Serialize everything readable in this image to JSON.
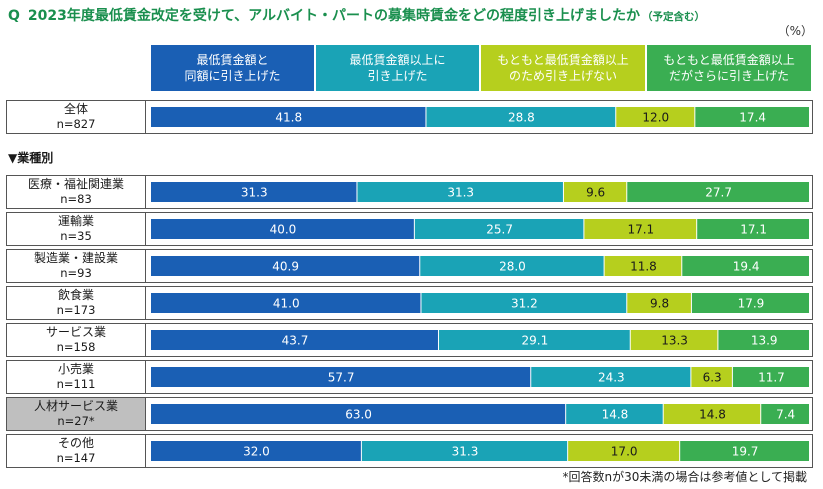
{
  "title": {
    "q": "Q",
    "text": "2023年度最低賃金改定を受けて、アルバイト・パートの募集時賃金をどの程度引き上げましたか",
    "note": "（予定含む）"
  },
  "unit": "（%）",
  "section_label": "▼業種別",
  "footnote": "*回答数nが30未満の場合は参考値として掲載",
  "colors": [
    "#1a5fb4",
    "#1aa3b6",
    "#b6cf1e",
    "#3aae52"
  ],
  "chart_data": {
    "type": "bar",
    "stacked": true,
    "orientation": "horizontal",
    "xlim": [
      0,
      100
    ],
    "legend": [
      "最低賃金額と\n同額に引き上げた",
      "最低賃金額以上に\n引き上げた",
      "もともと最低賃金額以上\nのため引き上げない",
      "もともと最低賃金額以上\nだがさらに引き上げた"
    ],
    "rows": [
      {
        "label": "全体",
        "n": "n=827",
        "values": [
          "41.8",
          "28.8",
          "12.0",
          "17.4"
        ]
      },
      {
        "label": "医療・福祉関連業",
        "n": "n=83",
        "values": [
          "31.3",
          "31.3",
          "9.6",
          "27.7"
        ]
      },
      {
        "label": "運輸業",
        "n": "n=35",
        "values": [
          "40.0",
          "25.7",
          "17.1",
          "17.1"
        ]
      },
      {
        "label": "製造業・建設業",
        "n": "n=93",
        "values": [
          "40.9",
          "28.0",
          "11.8",
          "19.4"
        ]
      },
      {
        "label": "飲食業",
        "n": "n=173",
        "values": [
          "41.0",
          "31.2",
          "9.8",
          "17.9"
        ]
      },
      {
        "label": "サービス業",
        "n": "n=158",
        "values": [
          "43.7",
          "29.1",
          "13.3",
          "13.9"
        ]
      },
      {
        "label": "小売業",
        "n": "n=111",
        "values": [
          "57.7",
          "24.3",
          "6.3",
          "11.7"
        ]
      },
      {
        "label": "人材サービス業",
        "n": "n=27*",
        "values": [
          "63.0",
          "14.8",
          "14.8",
          "7.4"
        ],
        "highlight": true
      },
      {
        "label": "その他",
        "n": "n=147",
        "values": [
          "32.0",
          "31.3",
          "17.0",
          "19.7"
        ]
      }
    ]
  }
}
